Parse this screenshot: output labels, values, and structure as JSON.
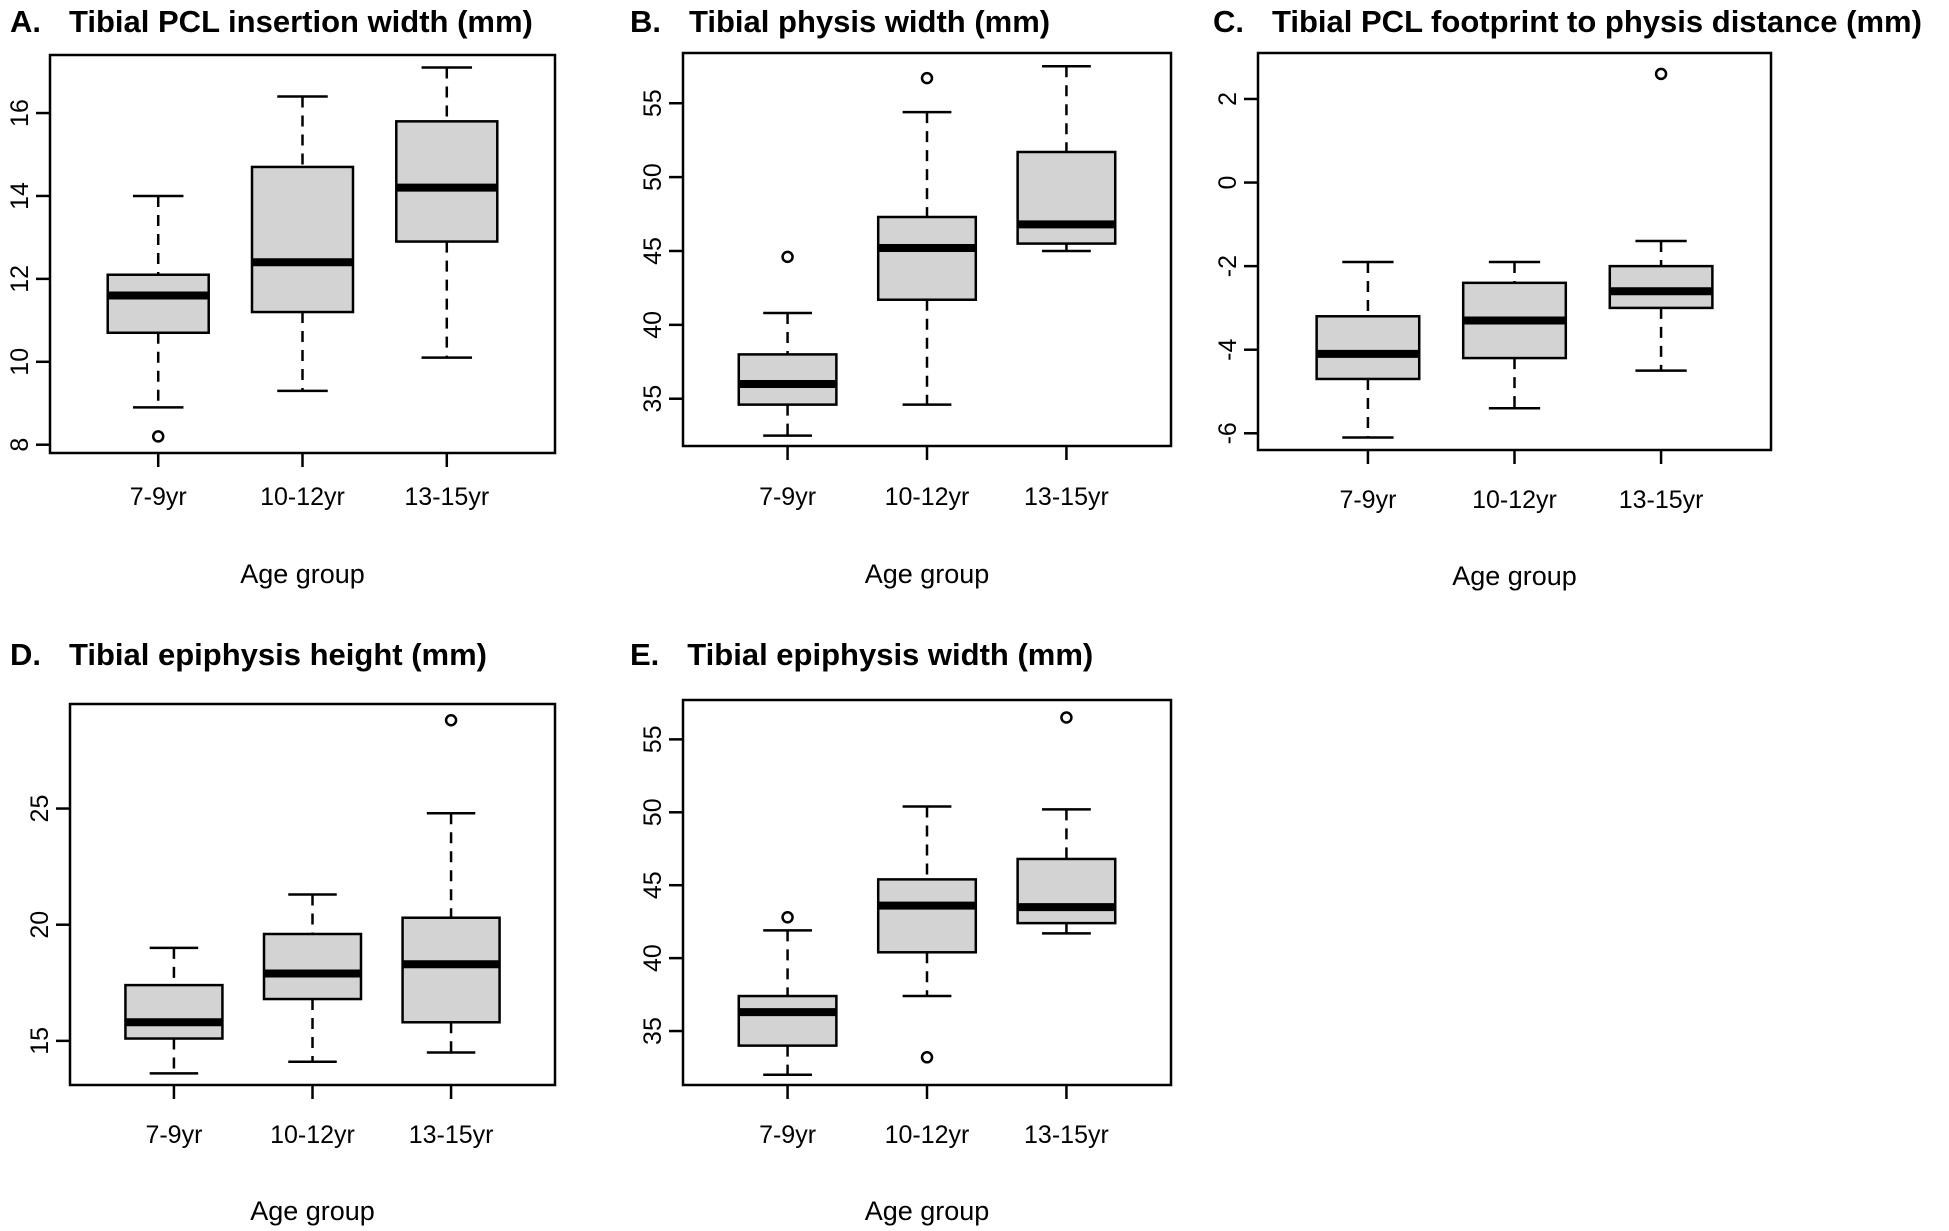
{
  "chart_data": [
    {
      "type": "box",
      "panel": "A.",
      "title": "Tibial PCL insertion width (mm)",
      "xlabel": "Age group",
      "ylabel": "",
      "categories": [
        "7-9yr",
        "10-12yr",
        "13-15yr"
      ],
      "yticks": [
        8,
        10,
        12,
        14,
        16
      ],
      "ylim": [
        7.8,
        17.4
      ],
      "boxes": [
        {
          "min": 8.9,
          "q1": 10.7,
          "median": 11.6,
          "q3": 12.1,
          "max": 14.0,
          "outliers": [
            8.2
          ]
        },
        {
          "min": 9.3,
          "q1": 11.2,
          "median": 12.4,
          "q3": 14.7,
          "max": 16.4,
          "outliers": []
        },
        {
          "min": 10.1,
          "q1": 12.9,
          "median": 14.2,
          "q3": 15.8,
          "max": 17.1,
          "outliers": []
        }
      ]
    },
    {
      "type": "box",
      "panel": "B.",
      "title": "Tibial physis width (mm)",
      "xlabel": "Age group",
      "ylabel": "",
      "categories": [
        "7-9yr",
        "10-12yr",
        "13-15yr"
      ],
      "yticks": [
        35,
        40,
        45,
        50,
        55
      ],
      "ylim": [
        31.8,
        58.4
      ],
      "boxes": [
        {
          "min": 32.5,
          "q1": 34.6,
          "median": 36.0,
          "q3": 38.0,
          "max": 40.8,
          "outliers": [
            44.6
          ]
        },
        {
          "min": 34.6,
          "q1": 41.7,
          "median": 45.2,
          "q3": 47.3,
          "max": 54.4,
          "outliers": [
            56.7
          ]
        },
        {
          "min": 45.0,
          "q1": 45.5,
          "median": 46.8,
          "q3": 51.7,
          "max": 57.5,
          "outliers": []
        }
      ]
    },
    {
      "type": "box",
      "panel": "C.",
      "title": "Tibial PCL footprint to physis distance (mm)",
      "xlabel": "Age group",
      "ylabel": "",
      "categories": [
        "7-9yr",
        "10-12yr",
        "13-15yr"
      ],
      "yticks": [
        -6,
        -4,
        -2,
        0,
        2
      ],
      "ylim": [
        -6.4,
        3.1
      ],
      "boxes": [
        {
          "min": -6.1,
          "q1": -4.7,
          "median": -4.1,
          "q3": -3.2,
          "max": -1.9,
          "outliers": []
        },
        {
          "min": -5.4,
          "q1": -4.2,
          "median": -3.3,
          "q3": -2.4,
          "max": -1.9,
          "outliers": []
        },
        {
          "min": -4.5,
          "q1": -3.0,
          "median": -2.6,
          "q3": -2.0,
          "max": -1.4,
          "outliers": [
            2.6
          ]
        }
      ]
    },
    {
      "type": "box",
      "panel": "D.",
      "title": "Tibial epiphysis height (mm)",
      "xlabel": "Age group",
      "ylabel": "",
      "categories": [
        "7-9yr",
        "10-12yr",
        "13-15yr"
      ],
      "yticks": [
        15,
        20,
        25
      ],
      "ylim": [
        13.1,
        29.5
      ],
      "boxes": [
        {
          "min": 13.6,
          "q1": 15.1,
          "median": 15.8,
          "q3": 17.4,
          "max": 19.0,
          "outliers": []
        },
        {
          "min": 14.1,
          "q1": 16.8,
          "median": 17.9,
          "q3": 19.6,
          "max": 21.3,
          "outliers": []
        },
        {
          "min": 14.5,
          "q1": 15.8,
          "median": 18.3,
          "q3": 20.3,
          "max": 24.8,
          "outliers": [
            28.8
          ]
        }
      ]
    },
    {
      "type": "box",
      "panel": "E.",
      "title": "Tibial epiphysis width (mm)",
      "xlabel": "Age group",
      "ylabel": "",
      "categories": [
        "7-9yr",
        "10-12yr",
        "13-15yr"
      ],
      "yticks": [
        35,
        40,
        45,
        50,
        55
      ],
      "ylim": [
        31.3,
        57.7
      ],
      "boxes": [
        {
          "min": 32.0,
          "q1": 34.0,
          "median": 36.3,
          "q3": 37.4,
          "max": 41.9,
          "outliers": [
            42.8
          ]
        },
        {
          "min": 37.4,
          "q1": 40.4,
          "median": 43.6,
          "q3": 45.4,
          "max": 50.4,
          "outliers": [
            33.2
          ]
        },
        {
          "min": 41.7,
          "q1": 42.4,
          "median": 43.5,
          "q3": 46.8,
          "max": 50.2,
          "outliers": [
            56.5
          ]
        }
      ]
    }
  ]
}
